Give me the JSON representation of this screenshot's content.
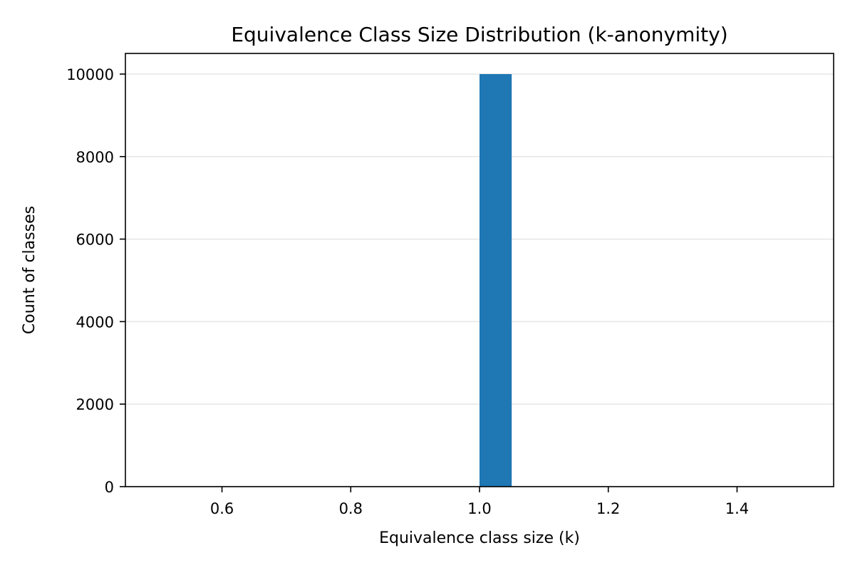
{
  "chart_data": {
    "type": "bar",
    "title": "Equivalence Class Size Distribution (k-anonymity)",
    "xlabel": "Equivalence class size (k)",
    "ylabel": "Count of classes",
    "xlim": [
      0.45,
      1.55
    ],
    "ylim": [
      0,
      10500
    ],
    "x_ticks": [
      0.6,
      0.8,
      1.0,
      1.2,
      1.4
    ],
    "x_tick_labels": [
      "0.6",
      "0.8",
      "1.0",
      "1.2",
      "1.4"
    ],
    "y_ticks": [
      0,
      2000,
      4000,
      6000,
      8000,
      10000
    ],
    "y_tick_labels": [
      "0",
      "2000",
      "4000",
      "6000",
      "8000",
      "10000"
    ],
    "grid": "y-major",
    "bars": [
      {
        "x_start": 1.0,
        "x_end": 1.05,
        "value": 10000
      }
    ],
    "bar_color": "#1f77b4",
    "grid_color": "#e5e5e5",
    "legend": "none"
  }
}
